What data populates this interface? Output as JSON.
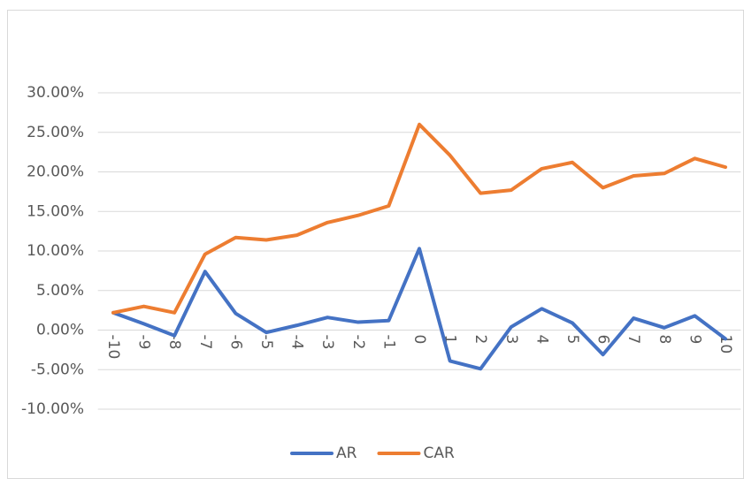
{
  "chart_data": {
    "type": "line",
    "categories": [
      "-10",
      "-9",
      "-8",
      "-7",
      "-6",
      "-5",
      "-4",
      "-3",
      "-2",
      "-1",
      "0",
      "1",
      "2",
      "3",
      "4",
      "5",
      "6",
      "7",
      "8",
      "9",
      "10"
    ],
    "series": [
      {
        "name": "AR",
        "color": "#4472c4",
        "values": [
          2.2,
          0.8,
          -0.7,
          7.4,
          2.1,
          -0.3,
          0.6,
          1.6,
          1.0,
          1.2,
          10.3,
          -3.9,
          -4.9,
          0.4,
          2.7,
          0.9,
          -3.1,
          1.5,
          0.3,
          1.8,
          -1.1
        ]
      },
      {
        "name": "CAR",
        "color": "#ed7d31",
        "values": [
          2.2,
          3.0,
          2.2,
          9.6,
          11.7,
          11.4,
          12.0,
          13.6,
          14.5,
          15.7,
          26.0,
          22.1,
          17.3,
          17.7,
          20.4,
          21.2,
          18.0,
          19.5,
          19.8,
          21.7,
          20.6
        ]
      }
    ],
    "ylim": [
      -10,
      30
    ],
    "yticks": [
      {
        "value": -10,
        "label": "-10.00%"
      },
      {
        "value": -5,
        "label": "-5.00%"
      },
      {
        "value": 0,
        "label": "0.00%"
      },
      {
        "value": 5,
        "label": "5.00%"
      },
      {
        "value": 10,
        "label": "10.00%"
      },
      {
        "value": 15,
        "label": "15.00%"
      },
      {
        "value": 20,
        "label": "20.00%"
      },
      {
        "value": 25,
        "label": "25.00%"
      },
      {
        "value": 30,
        "label": "30.00%"
      }
    ],
    "grid": true,
    "legend": "bottom"
  }
}
